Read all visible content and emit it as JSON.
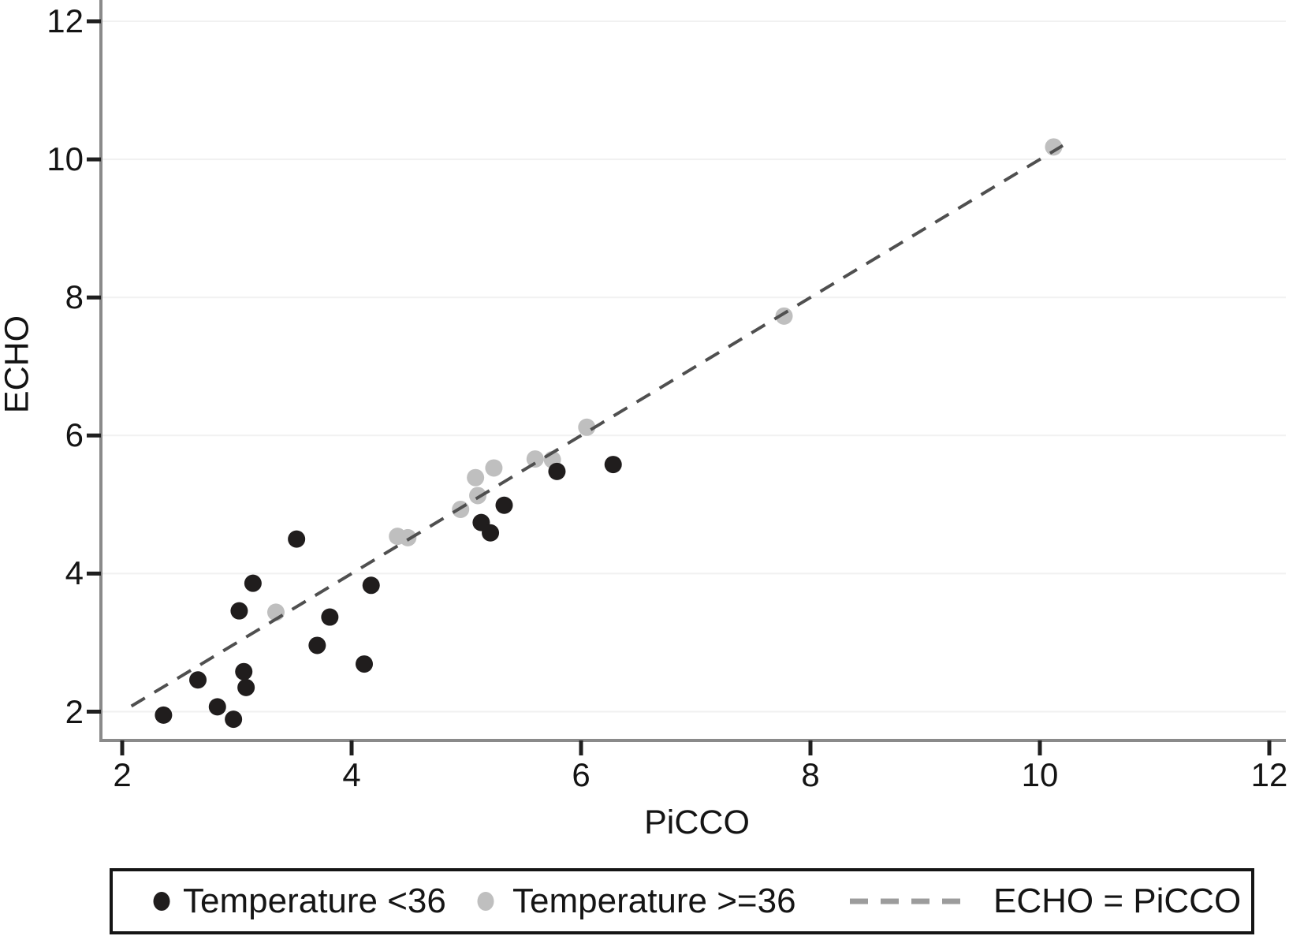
{
  "chart_data": {
    "type": "scatter",
    "title": "",
    "xlabel": "PiCCO",
    "ylabel": "ECHO",
    "x_ticks": [
      2,
      4,
      6,
      8,
      10,
      12
    ],
    "y_ticks": [
      2,
      4,
      6,
      8,
      10,
      12
    ],
    "xlim": [
      1.8,
      12.15
    ],
    "ylim": [
      1.7,
      12.3
    ],
    "grid": "horizontal-only",
    "legend_position": "bottom",
    "series": [
      {
        "name": "Temperature <36",
        "marker": "dot",
        "color": "#201d1d",
        "points": [
          [
            2.36,
            1.95
          ],
          [
            2.66,
            2.46
          ],
          [
            2.83,
            2.07
          ],
          [
            2.97,
            1.89
          ],
          [
            3.02,
            3.46
          ],
          [
            3.06,
            2.58
          ],
          [
            3.08,
            2.35
          ],
          [
            3.14,
            3.86
          ],
          [
            3.52,
            4.5
          ],
          [
            3.7,
            2.96
          ],
          [
            3.81,
            3.37
          ],
          [
            4.11,
            2.69
          ],
          [
            4.17,
            3.83
          ],
          [
            5.13,
            4.74
          ],
          [
            5.21,
            4.59
          ],
          [
            5.33,
            4.99
          ],
          [
            5.79,
            5.48
          ],
          [
            6.28,
            5.58
          ]
        ]
      },
      {
        "name": "Temperature >=36",
        "marker": "dot",
        "color": "#bfbfbf",
        "points": [
          [
            3.34,
            3.44
          ],
          [
            4.4,
            4.54
          ],
          [
            4.49,
            4.52
          ],
          [
            4.95,
            4.93
          ],
          [
            5.08,
            5.39
          ],
          [
            5.1,
            5.13
          ],
          [
            5.24,
            5.53
          ],
          [
            5.6,
            5.66
          ],
          [
            5.75,
            5.65
          ],
          [
            6.05,
            6.12
          ],
          [
            7.77,
            7.73
          ],
          [
            10.12,
            10.18
          ]
        ]
      }
    ],
    "reference_line": {
      "label": "ECHO = PiCCO",
      "equation": "y = x",
      "from": 2.08,
      "to": 10.2,
      "style": "dashed",
      "color": "#4f4f4f"
    }
  },
  "legend": {
    "items": [
      {
        "label": "Temperature <36",
        "marker": "dot",
        "color": "#201d1d"
      },
      {
        "label": "Temperature >=36",
        "marker": "dot",
        "color": "#bfbfbf"
      },
      {
        "label": "ECHO = PiCCO",
        "marker": "dashed-line",
        "color": "#9c9c9c"
      }
    ]
  },
  "colors": {
    "background": "#ffffff",
    "axis": "#8a8a8a",
    "tick": "#1f1f1f",
    "grid": "#f1f1f1",
    "text": "#141414"
  }
}
